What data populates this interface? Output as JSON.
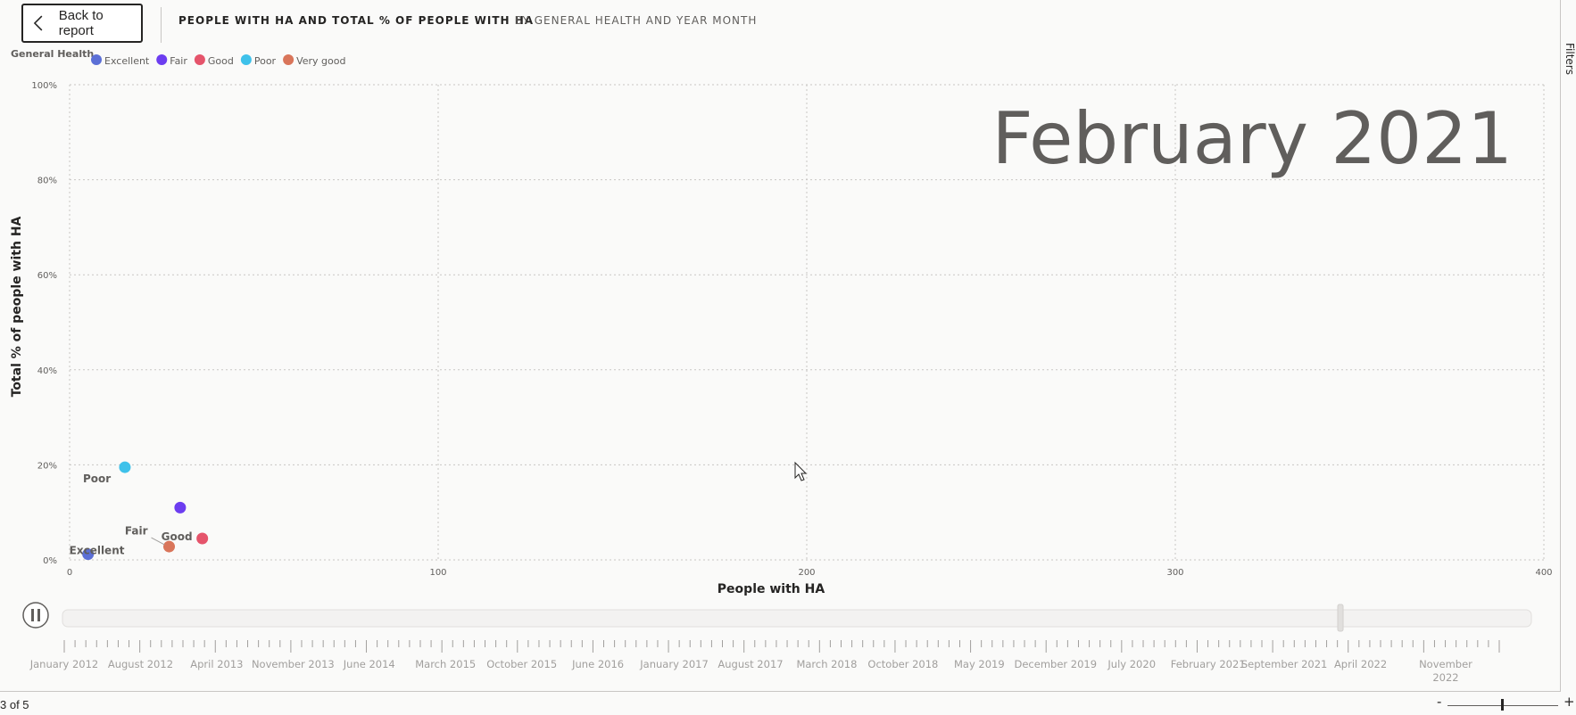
{
  "header": {
    "back_label": "Back to report",
    "title": "PEOPLE WITH HA AND TOTAL % OF PEOPLE WITH HA",
    "subtitle": "BY GENERAL HEALTH AND YEAR MONTH"
  },
  "side_tab_label": "Filters",
  "status": {
    "page_indicator": "3 of 5",
    "zoom_minus": "-",
    "zoom_plus": "+"
  },
  "chart_data": {
    "type": "scatter",
    "title": "PEOPLE WITH HA AND TOTAL % OF PEOPLE WITH HA",
    "subtitle": "BY GENERAL HEALTH AND YEAR MONTH",
    "xlabel": "People with HA",
    "ylabel": "Total % of people with HA",
    "xlim": [
      0,
      400
    ],
    "ylim": [
      0,
      100
    ],
    "x_ticks": [
      "0",
      "100",
      "200",
      "300",
      "400"
    ],
    "y_ticks": [
      "0%",
      "20%",
      "40%",
      "60%",
      "80%",
      "100%"
    ],
    "grid": true,
    "legend_title": "General Health",
    "legend_position": "top-left",
    "current_frame_label": "February 2021",
    "series": [
      {
        "name": "Excellent",
        "color": "#5b6fd6",
        "x": 5,
        "y": 1.2,
        "label": "Excellent"
      },
      {
        "name": "Fair",
        "color": "#6c3df0",
        "x": 30,
        "y": 11,
        "label": "Fair"
      },
      {
        "name": "Good",
        "color": "#e5546b",
        "x": 36,
        "y": 4.5,
        "label": "Good"
      },
      {
        "name": "Poor",
        "color": "#3ec1ea",
        "x": 15,
        "y": 19.5,
        "label": "Poor"
      },
      {
        "name": "Very good",
        "color": "#d9755a",
        "x": 27,
        "y": 2.8,
        "label": ""
      }
    ],
    "play_axis": {
      "state": "playing",
      "position_label": "February 2021",
      "position_fraction": 0.87,
      "tick_labels": [
        [
          "January 2012"
        ],
        [
          "August 2012"
        ],
        [
          "April 2013"
        ],
        [
          "November 2013"
        ],
        [
          "June 2014"
        ],
        [
          "March 2015"
        ],
        [
          "October 2015"
        ],
        [
          "June 2016"
        ],
        [
          "January 2017"
        ],
        [
          "August 2017"
        ],
        [
          "March 2018"
        ],
        [
          "October 2018"
        ],
        [
          "May 2019"
        ],
        [
          "December 2019"
        ],
        [
          "July 2020"
        ],
        [
          "February 2021"
        ],
        [
          "September 2021"
        ],
        [
          "April 2022"
        ],
        [
          "November",
          "2022"
        ]
      ]
    }
  }
}
